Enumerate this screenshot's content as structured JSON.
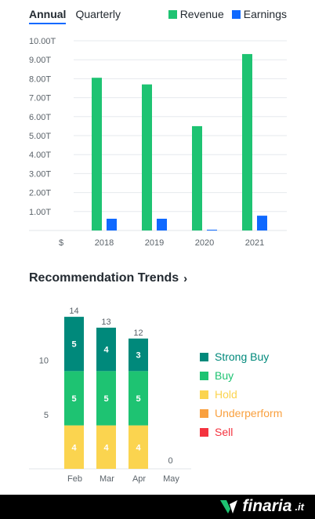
{
  "tabs": {
    "annual": "Annual",
    "quarterly": "Quarterly"
  },
  "financials_legend": {
    "revenue": "Revenue",
    "earnings": "Earnings",
    "revenue_color": "#1ec372",
    "earnings_color": "#0f69ff"
  },
  "recommendation": {
    "title": "Recommendation Trends",
    "legend": [
      {
        "label": "Strong Buy",
        "color": "#00897b",
        "text_color": "#00897b"
      },
      {
        "label": "Buy",
        "color": "#1ec372",
        "text_color": "#1ec372"
      },
      {
        "label": "Hold",
        "color": "#fbd44f",
        "text_color": "#fbd44f"
      },
      {
        "label": "Underperform",
        "color": "#f9a03f",
        "text_color": "#f9a03f"
      },
      {
        "label": "Sell",
        "color": "#f4333f",
        "text_color": "#f4333f"
      }
    ]
  },
  "brand": {
    "name": "finaria",
    "suffix": ".it"
  },
  "chart_data": [
    {
      "type": "bar",
      "categories": [
        "2018",
        "2019",
        "2020",
        "2021"
      ],
      "series": [
        {
          "name": "Revenue",
          "values": [
            8.05,
            7.7,
            5.5,
            9.3
          ],
          "color": "#1ec372"
        },
        {
          "name": "Earnings",
          "values": [
            0.62,
            0.62,
            0.03,
            0.78
          ],
          "color": "#0f69ff"
        }
      ],
      "ylim": [
        0,
        10
      ],
      "y_ticks": [
        "1.00T",
        "2.00T",
        "3.00T",
        "4.00T",
        "5.00T",
        "6.00T",
        "7.00T",
        "8.00T",
        "9.00T",
        "10.00T"
      ],
      "y_tick_values": [
        1,
        2,
        3,
        4,
        5,
        6,
        7,
        8,
        9,
        10
      ],
      "x_axis_currency": "$",
      "grid": true,
      "legend": "top-right"
    },
    {
      "type": "bar",
      "stacked": true,
      "categories": [
        "Feb",
        "Mar",
        "Apr",
        "May"
      ],
      "totals": [
        14,
        13,
        12,
        0
      ],
      "series": [
        {
          "name": "Hold",
          "values": [
            4,
            4,
            4,
            0
          ],
          "color": "#fbd44f"
        },
        {
          "name": "Buy",
          "values": [
            5,
            5,
            5,
            0
          ],
          "color": "#1ec372"
        },
        {
          "name": "Strong Buy",
          "values": [
            5,
            4,
            3,
            0
          ],
          "color": "#00897b"
        }
      ],
      "ylim": [
        0,
        14
      ],
      "y_ticks": [
        "5",
        "10"
      ],
      "y_tick_values": [
        5,
        10
      ],
      "legend": "right"
    }
  ]
}
